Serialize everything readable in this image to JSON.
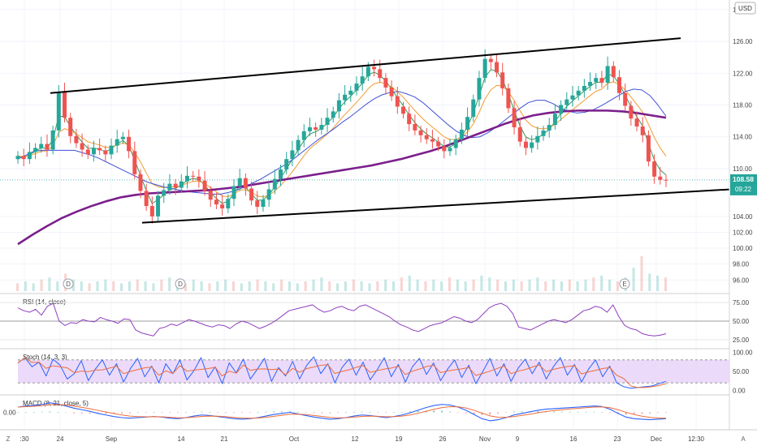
{
  "chart_data": [
    {
      "type": "candlestick",
      "currency": "USD",
      "y_ticks": [
        "130.00",
        "126.00",
        "122.00",
        "118.00",
        "114.00",
        "110.00",
        "104.00",
        "102.00",
        "100.00",
        "98.00",
        "96.00"
      ],
      "ylim": [
        94.5,
        131
      ],
      "last_price": "108.58",
      "countdown": "09:22",
      "x_ticks": [
        ":30",
        "24",
        "Sep",
        "14",
        "21",
        "Oct",
        "12",
        "19",
        "26",
        "Nov",
        "9",
        "16",
        "23",
        "Dec",
        "12:30"
      ],
      "event_markers": [
        "D",
        "D",
        "E"
      ],
      "closes": [
        111.6,
        111.2,
        112.1,
        112.6,
        113.1,
        112.4,
        114.8,
        119.6,
        116.4,
        114.1,
        113.2,
        112.4,
        111.8,
        112.6,
        112.3,
        111.8,
        112.9,
        113.7,
        114.0,
        112.2,
        109.3,
        107.2,
        105.3,
        104.0,
        106.6,
        107.3,
        108.1,
        107.6,
        108.4,
        109.1,
        109.0,
        108.5,
        107.2,
        106.1,
        105.5,
        105.0,
        106.2,
        107.8,
        108.8,
        107.5,
        106.0,
        105.2,
        106.1,
        107.4,
        108.7,
        109.9,
        111.2,
        112.3,
        113.6,
        114.7,
        115.2,
        114.9,
        115.5,
        116.4,
        117.2,
        118.6,
        119.3,
        119.8,
        120.7,
        121.6,
        122.8,
        122.5,
        121.4,
        120.2,
        119.1,
        117.8,
        116.9,
        115.6,
        114.8,
        114.2,
        113.7,
        113.4,
        112.8,
        112.2,
        112.6,
        113.7,
        114.9,
        116.5,
        118.7,
        121.4,
        123.8,
        123.4,
        122.1,
        120.1,
        117.6,
        115.2,
        113.4,
        112.6,
        113.3,
        114.1,
        114.8,
        115.5,
        116.9,
        118.0,
        118.7,
        119.2,
        119.8,
        120.4,
        120.9,
        121.4,
        120.8,
        122.9,
        121.5,
        119.5,
        117.9,
        116.3,
        115.3,
        114.2,
        110.9,
        109.0,
        108.6,
        108.58
      ],
      "ma_blue": [
        111.2,
        111.7,
        112.2,
        112.3,
        112.3,
        112.3,
        112.3,
        112.3,
        112.0,
        111.7,
        111.3,
        110.8,
        110.3,
        109.8,
        109.3,
        108.8,
        108.3,
        108.0,
        107.7,
        107.5,
        107.3,
        107.1,
        107.0,
        106.9,
        106.8,
        106.8,
        107.0,
        107.3,
        107.7,
        108.2,
        108.7,
        109.3,
        109.9,
        110.5,
        111.2,
        112.0,
        112.8,
        113.6,
        114.3,
        115.0,
        115.8,
        116.5,
        117.3,
        118.1,
        118.8,
        119.3,
        119.6,
        119.7,
        119.4,
        119.0,
        118.3,
        117.4,
        116.5,
        115.6,
        114.8,
        114.2,
        113.9,
        114.0,
        114.5,
        115.2,
        116.0,
        116.8,
        117.6,
        118.3,
        118.6,
        118.6,
        118.2,
        117.6,
        117.2,
        117.0,
        117.1,
        117.4,
        117.9,
        118.5,
        119.1,
        119.7,
        120.0,
        119.9,
        119.2,
        118.0,
        116.6
      ],
      "ma_purple": [
        100.5,
        101.7,
        102.8,
        103.8,
        104.6,
        105.3,
        105.9,
        106.4,
        106.7,
        106.9,
        107.0,
        107.1,
        107.2,
        107.3,
        107.5,
        107.7,
        108.0,
        108.3,
        108.6,
        108.9,
        109.2,
        109.5,
        109.8,
        110.1,
        110.4,
        110.8,
        111.2,
        111.7,
        112.2,
        112.8,
        113.5,
        114.2,
        114.9,
        115.6,
        116.2,
        116.7,
        117.0,
        117.2,
        117.3,
        117.3,
        117.3,
        117.2,
        117.0,
        116.7,
        116.4
      ],
      "trendlines": [
        {
          "name": "upper-channel",
          "from": [
            "62",
            "119.5"
          ],
          "to": [
            "838",
            "126.4"
          ]
        },
        {
          "name": "lower-channel",
          "from": [
            "175",
            "103.2"
          ],
          "to": [
            "900",
            "107.4"
          ]
        }
      ],
      "volume": [
        4,
        5,
        4,
        6,
        7,
        5,
        9,
        6,
        5,
        4,
        5,
        6,
        5,
        4,
        5,
        6,
        5,
        4,
        6,
        7,
        5,
        4,
        6,
        5,
        4,
        5,
        6,
        5,
        4,
        5,
        6,
        5,
        4,
        6,
        5,
        4,
        5,
        6,
        7,
        5,
        4,
        5,
        6,
        5,
        4,
        5,
        6,
        5,
        7,
        8,
        6,
        5,
        6,
        5,
        7,
        6,
        5,
        6,
        8,
        7,
        6,
        5,
        6,
        5,
        6,
        7,
        5,
        6,
        5,
        6,
        5,
        6,
        7,
        8,
        6,
        5,
        7,
        12,
        18,
        9,
        8,
        7
      ]
    },
    {
      "type": "line",
      "title": "RSI (14, close)",
      "y_ticks": [
        "75.00",
        "50.00",
        "25.00"
      ],
      "ylim": [
        15,
        85
      ],
      "values": [
        68,
        64,
        62,
        66,
        58,
        70,
        74,
        50,
        44,
        48,
        47,
        52,
        50,
        49,
        55,
        52,
        50,
        47,
        53,
        52,
        38,
        34,
        32,
        30,
        40,
        42,
        46,
        44,
        48,
        52,
        50,
        47,
        44,
        42,
        45,
        44,
        40,
        46,
        50,
        48,
        44,
        40,
        43,
        47,
        52,
        58,
        64,
        66,
        68,
        70,
        72,
        66,
        62,
        64,
        68,
        70,
        66,
        64,
        70,
        72,
        68,
        64,
        60,
        56,
        50,
        45,
        42,
        38,
        36,
        40,
        44,
        46,
        48,
        52,
        56,
        54,
        50,
        48,
        52,
        60,
        68,
        72,
        74,
        70,
        60,
        42,
        40,
        38,
        42,
        46,
        50,
        52,
        50,
        48,
        52,
        58,
        64,
        66,
        70,
        68,
        62,
        72,
        56,
        44,
        40,
        38,
        33,
        31,
        30,
        31,
        33
      ]
    },
    {
      "type": "line",
      "title": "Stoch (14, 3, 3)",
      "y_ticks": [
        "100.00",
        "50.00",
        "0.00"
      ],
      "ylim": [
        -5,
        105
      ],
      "band": [
        20,
        80
      ],
      "values": [
        72,
        86,
        62,
        74,
        38,
        82,
        66,
        30,
        44,
        78,
        26,
        56,
        80,
        40,
        70,
        22,
        58,
        84,
        36,
        64,
        20,
        70,
        44,
        80,
        28,
        52,
        86,
        34,
        62,
        18,
        72,
        46,
        82,
        30,
        56,
        84,
        24,
        60,
        38,
        76,
        30,
        66,
        88,
        44,
        70,
        20,
        60,
        82,
        40,
        74,
        28,
        54,
        86,
        36,
        68,
        22,
        62,
        84,
        42,
        72,
        26,
        56,
        80,
        34,
        66,
        18,
        50,
        84,
        38,
        70,
        24,
        58,
        82,
        44,
        74,
        30,
        62,
        86,
        40,
        68,
        22,
        56,
        80,
        36,
        64,
        20,
        10,
        6,
        8,
        10,
        12,
        18,
        24
      ]
    },
    {
      "type": "line",
      "title": "MACD (8, 21, close, 5)",
      "y_ticks": [
        "0.00"
      ],
      "ylim": [
        -3,
        3
      ],
      "values": [
        1.0,
        1.2,
        1.3,
        1.5,
        1.8,
        1.6,
        1.2,
        0.8,
        0.5,
        0.2,
        -0.2,
        -0.5,
        -0.8,
        -1.0,
        -1.1,
        -1.0,
        -0.9,
        -0.8,
        -0.9,
        -1.1,
        -1.2,
        -1.0,
        -0.7,
        -0.5,
        -0.6,
        -0.8,
        -1.0,
        -1.2,
        -1.3,
        -1.2,
        -1.0,
        -0.7,
        -0.4,
        -0.2,
        0.0,
        -0.3,
        -0.6,
        -0.9,
        -1.1,
        -1.3,
        -1.2,
        -1.0,
        -0.7,
        -0.5,
        -0.6,
        -0.8,
        -1.0,
        -0.8,
        -0.5,
        -0.1,
        0.4,
        0.9,
        1.3,
        1.5,
        1.4,
        1.0,
        0.4,
        -0.4,
        -1.2,
        -1.6,
        -1.4,
        -1.0,
        -0.5,
        -0.2,
        0.1,
        0.4,
        0.6,
        0.7,
        0.8,
        0.9,
        1.0,
        1.1,
        1.2,
        1.1,
        0.6,
        -0.2,
        -0.9,
        -1.2,
        -1.3,
        -1.4,
        -1.3,
        -1.2
      ]
    }
  ],
  "toolbar": {
    "settings_glyph": "Z",
    "log_glyph": "A"
  },
  "colors": {
    "candle_up": "#26a69a",
    "candle_down": "#ef5350",
    "ma_orange": "#f39c30",
    "ma_blue": "#3f51d6",
    "ma_purple": "#7b1f8c",
    "ma_green": "#2e9c5a",
    "rsi": "#8e3fbf",
    "stoch_k": "#2962ff",
    "stoch_d": "#ef6c3a",
    "stoch_band": "#e8d4f8",
    "macd": "#2962ff",
    "signal": "#ef6c3a",
    "trendline": "#000000",
    "price_label": "#26a69a"
  }
}
